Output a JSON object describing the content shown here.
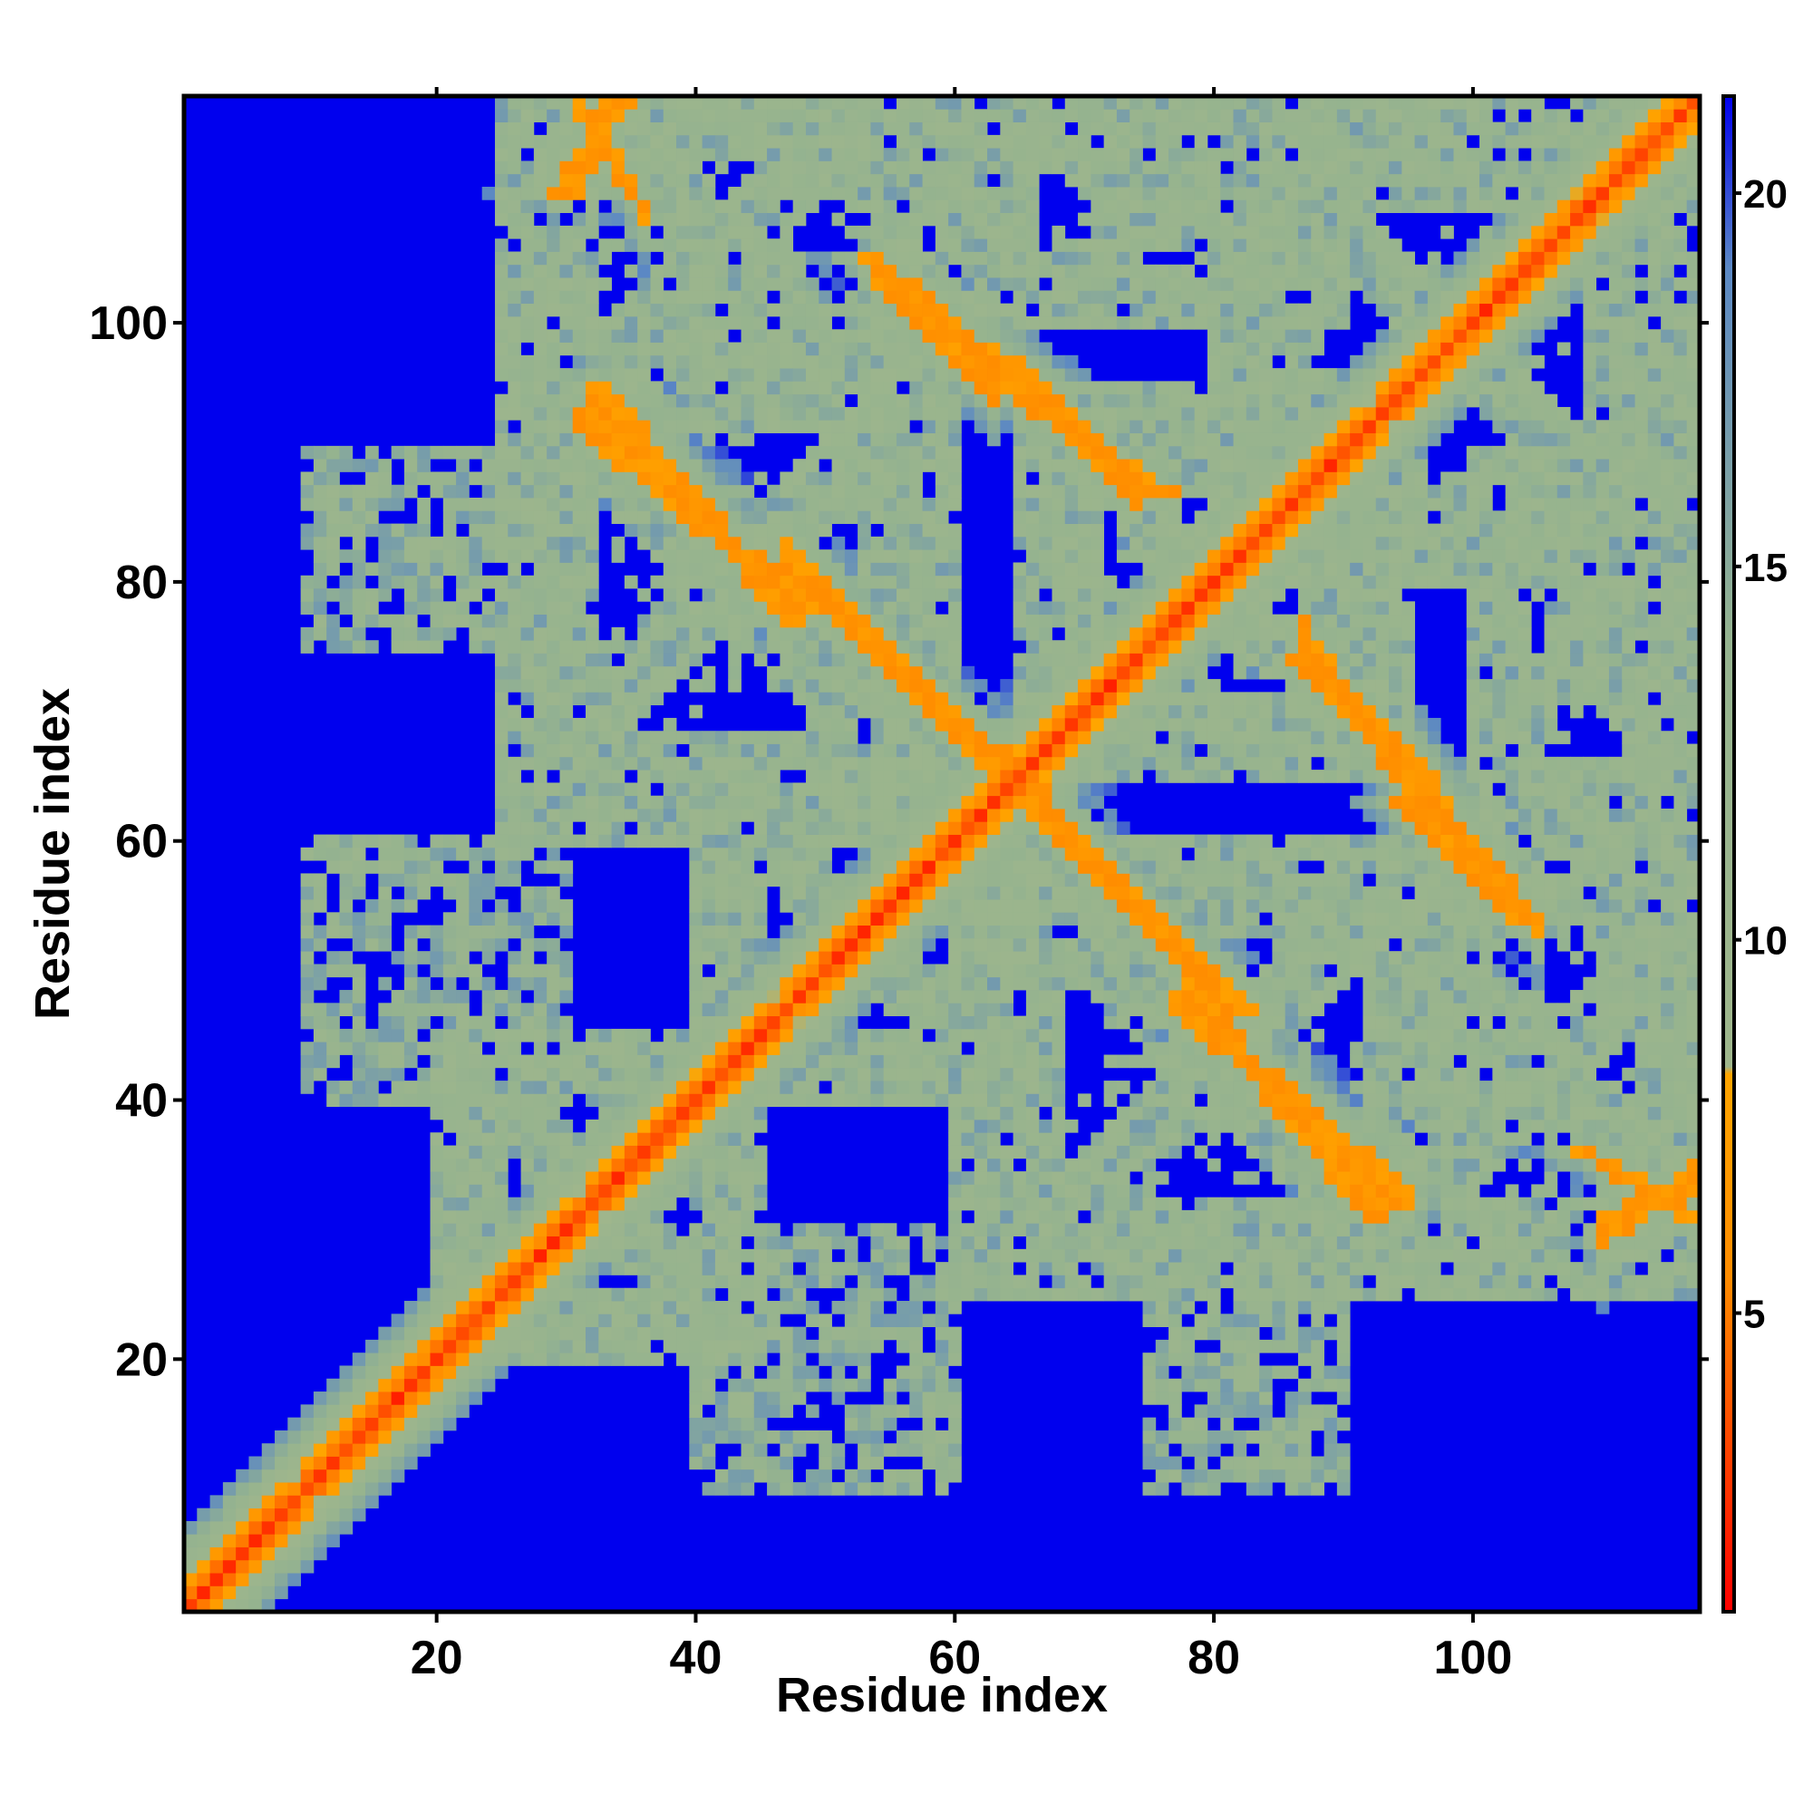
{
  "chart_data": {
    "type": "heatmap",
    "title": "",
    "xlabel": "Residue index",
    "ylabel": "Residue index",
    "n_residues": 117,
    "xlim": [
      1,
      117
    ],
    "ylim": [
      1,
      117
    ],
    "x_ticks": [
      20,
      40,
      60,
      80,
      100
    ],
    "y_ticks": [
      20,
      40,
      60,
      80,
      100
    ],
    "colorbar": {
      "range": [
        1,
        21.3
      ],
      "ticks": [
        5,
        10,
        15,
        20
      ],
      "stops": [
        {
          "value": 1,
          "color": "#ff0000"
        },
        {
          "value": 5.5,
          "color": "#ff8c00"
        },
        {
          "value": 8.2,
          "color": "#ffa500"
        },
        {
          "value": 8.3,
          "color": "#9fb68c"
        },
        {
          "value": 14,
          "color": "#95b38f"
        },
        {
          "value": 19,
          "color": "#5b88c4"
        },
        {
          "value": 21.3,
          "color": "#0000ee"
        }
      ]
    },
    "background_value": 21.3,
    "structure": {
      "main_diagonal": {
        "core_value": 2,
        "band_halfwidth": 6
      },
      "antiparallel_contacts": [
        {
          "i_start": 33,
          "i_end": 46,
          "j_start": 91,
          "j_end": 80
        },
        {
          "i_start": 49,
          "i_end": 63,
          "j_start": 80,
          "j_end": 66
        },
        {
          "i_start": 66,
          "i_end": 79,
          "j_start": 64,
          "j_end": 49
        },
        {
          "i_start": 79,
          "i_end": 93,
          "j_start": 46,
          "j_end": 34
        },
        {
          "i_start": 67,
          "i_end": 72,
          "j_start": 94,
          "j_end": 89
        },
        {
          "i_start": 89,
          "i_end": 93,
          "j_start": 73,
          "j_end": 67
        },
        {
          "i_start": 56,
          "i_end": 61,
          "j_start": 102,
          "j_end": 97
        },
        {
          "i_start": 98,
          "i_end": 103,
          "j_start": 62,
          "j_end": 56
        },
        {
          "i_start": 31,
          "i_end": 34,
          "j_start": 117,
          "j_end": 112
        },
        {
          "i_start": 112,
          "i_end": 117,
          "j_start": 31,
          "j_end": 34
        }
      ],
      "weak_contact_regions": [
        {
          "i": [
            20,
            45
          ],
          "j": [
            20,
            45
          ]
        },
        {
          "i": [
            40,
            65
          ],
          "j": [
            40,
            65
          ]
        },
        {
          "i": [
            65,
            95
          ],
          "j": [
            65,
            95
          ]
        },
        {
          "i": [
            25,
            60
          ],
          "j": [
            60,
            100
          ]
        },
        {
          "i": [
            60,
            100
          ],
          "j": [
            25,
            60
          ]
        },
        {
          "i": [
            80,
            117
          ],
          "j": [
            80,
            117
          ]
        },
        {
          "i": [
            25,
            60
          ],
          "j": [
            95,
            117
          ]
        },
        {
          "i": [
            95,
            117
          ],
          "j": [
            25,
            60
          ]
        },
        {
          "i": [
            40,
            60
          ],
          "j": [
            10,
            30
          ]
        },
        {
          "i": [
            75,
            90
          ],
          "j": [
            10,
            30
          ]
        },
        {
          "i": [
            60,
            90
          ],
          "j": [
            100,
            117
          ]
        },
        {
          "i": [
            100,
            117
          ],
          "j": [
            60,
            90
          ]
        }
      ]
    }
  }
}
